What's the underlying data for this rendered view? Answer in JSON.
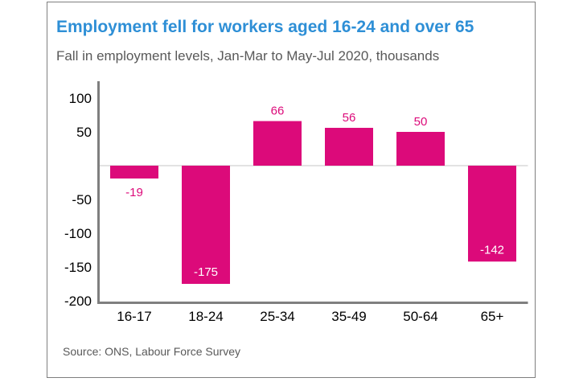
{
  "chart_data": {
    "type": "bar",
    "title": "Employment fell for workers aged 16-24 and over 65",
    "subtitle": "Fall in employment levels, Jan-Mar to May-Jul 2020, thousands",
    "source": "Source: ONS, Labour Force Survey",
    "xlabel": "",
    "ylabel": "",
    "categories": [
      "16-17",
      "18-24",
      "25-34",
      "35-49",
      "50-64",
      "65+"
    ],
    "values": [
      -19,
      -175,
      66,
      56,
      50,
      -142
    ],
    "data_labels": [
      "-19",
      "-175",
      "66",
      "56",
      "50",
      "-142"
    ],
    "ylim": [
      -200,
      100
    ],
    "yticks": [
      100,
      50,
      -50,
      -100,
      -150,
      -200
    ],
    "ytick_labels": [
      "100",
      "50",
      "-50",
      "-100",
      "-150",
      "-200"
    ],
    "grid": false,
    "legend": "none",
    "colors": {
      "bar": "#dc0a7a",
      "title": "#2e8fd6",
      "axis": "#7f7f7f"
    }
  }
}
